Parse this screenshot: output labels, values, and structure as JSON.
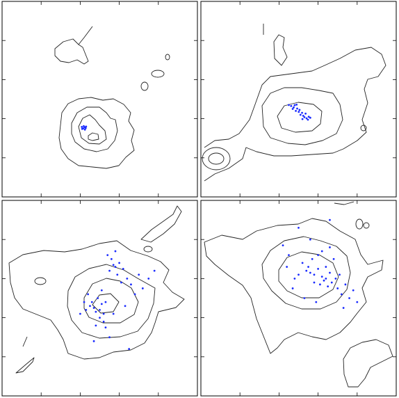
{
  "chart_data": [
    {
      "type": "scatter",
      "color": "#1a2bff",
      "xlim": [
        0,
        100
      ],
      "ylim": [
        0,
        100
      ],
      "xticks": [
        0,
        20,
        40,
        60,
        80,
        100
      ],
      "yticks": [
        0,
        20,
        40,
        60,
        80,
        100
      ],
      "x": [
        41.5,
        42.2,
        41.0,
        42.8,
        41.8,
        42.4,
        40.8,
        43.0
      ],
      "y": [
        35.0,
        35.6,
        34.8,
        35.2,
        36.2,
        34.4,
        35.8,
        36.0
      ]
    },
    {
      "type": "scatter",
      "color": "#1a2bff",
      "xlim": [
        0,
        100
      ],
      "ylim": [
        0,
        100
      ],
      "xticks": [
        0,
        20,
        40,
        60,
        80,
        100
      ],
      "yticks": [
        0,
        20,
        40,
        60,
        80,
        100
      ],
      "x": [
        45.0,
        46.2,
        47.5,
        48.0,
        49.3,
        50.1,
        51.0,
        52.4,
        53.0,
        54.1,
        55.2,
        50.5,
        51.8,
        53.6,
        49.0,
        47.0,
        52.0,
        54.8,
        56.0,
        48.6
      ],
      "y": [
        47.0,
        46.5,
        45.8,
        46.9,
        45.2,
        43.5,
        42.0,
        41.5,
        40.8,
        40.2,
        41.0,
        44.5,
        43.0,
        42.6,
        47.2,
        45.0,
        39.8,
        39.5,
        40.5,
        44.0
      ]
    },
    {
      "type": "scatter",
      "color": "#1a2bff",
      "xlim": [
        0,
        100
      ],
      "ylim": [
        0,
        100
      ],
      "xticks": [
        0,
        20,
        40,
        60,
        80,
        100
      ],
      "yticks": [
        0,
        20,
        40,
        60,
        80,
        100
      ],
      "x": [
        45,
        47,
        48,
        50,
        51,
        52,
        53,
        49,
        46,
        55,
        57,
        58,
        60,
        62,
        54,
        56,
        59,
        44,
        43,
        50,
        52,
        61,
        64,
        66,
        70,
        72,
        75,
        78,
        68,
        48,
        53,
        57,
        42,
        40,
        63,
        55,
        47,
        51,
        65,
        58
      ],
      "y": [
        46,
        45,
        43,
        44,
        47,
        42,
        48,
        50,
        48,
        64,
        67,
        66,
        68,
        65,
        72,
        70,
        62,
        52,
        44,
        40,
        38,
        58,
        60,
        57,
        62,
        55,
        60,
        64,
        52,
        36,
        35,
        42,
        48,
        42,
        46,
        30,
        28,
        54,
        24,
        74
      ]
    },
    {
      "type": "scatter",
      "color": "#1a2bff",
      "xlim": [
        0,
        100
      ],
      "ylim": [
        0,
        100
      ],
      "xticks": [
        0,
        20,
        40,
        60,
        80,
        100
      ],
      "yticks": [
        0,
        20,
        40,
        60,
        80,
        100
      ],
      "x": [
        54,
        56,
        58,
        60,
        62,
        64,
        66,
        58,
        61,
        63,
        65,
        67,
        69,
        55,
        52,
        50,
        48,
        70,
        72,
        74,
        57,
        60,
        62,
        66,
        68,
        45,
        44,
        76,
        78,
        80,
        47,
        53,
        59,
        71,
        64,
        56,
        50,
        73,
        42,
        66
      ],
      "y": [
        64,
        63,
        62,
        65,
        61,
        60,
        63,
        58,
        57,
        59,
        56,
        58,
        60,
        66,
        68,
        62,
        60,
        55,
        52,
        57,
        70,
        72,
        74,
        76,
        70,
        72,
        66,
        50,
        54,
        48,
        55,
        50,
        48,
        62,
        66,
        80,
        86,
        45,
        77,
        90
      ]
    }
  ]
}
